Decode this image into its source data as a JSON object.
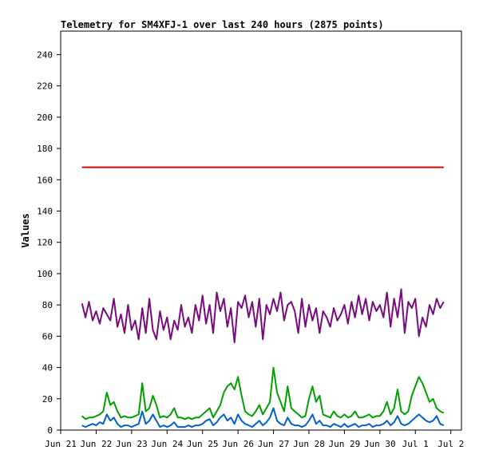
{
  "chart_data": {
    "type": "line",
    "title": "Telemetry for SM4XFJ-1 over last 240 hours (2875 points)",
    "xlabel": "",
    "ylabel": "Values",
    "ylim": [
      0,
      255
    ],
    "yticks": [
      0,
      20,
      40,
      60,
      80,
      100,
      120,
      140,
      160,
      180,
      200,
      220,
      240
    ],
    "x_tick_labels": [
      "Jun 21",
      "Jun 22",
      "Jun 23",
      "Jun 24",
      "Jun 25",
      "Jun 26",
      "Jun 27",
      "Jun 28",
      "Jun 29",
      "Jun 30",
      "Jul 1",
      "Jul 2"
    ],
    "xlim_days": [
      0,
      11.3
    ],
    "grid": false,
    "legend": "none",
    "series": [
      {
        "color": "#dd0000",
        "x_days": [
          0.6,
          10.8
        ],
        "values": [
          168,
          168
        ]
      },
      {
        "color": "#7a0a7f",
        "x_days": [
          0.6,
          0.7,
          0.8,
          0.9,
          1.0,
          1.1,
          1.2,
          1.3,
          1.4,
          1.5,
          1.6,
          1.7,
          1.8,
          1.9,
          2.0,
          2.1,
          2.2,
          2.3,
          2.4,
          2.5,
          2.6,
          2.7,
          2.8,
          2.9,
          3.0,
          3.1,
          3.2,
          3.3,
          3.4,
          3.5,
          3.6,
          3.7,
          3.8,
          3.9,
          4.0,
          4.1,
          4.2,
          4.3,
          4.4,
          4.5,
          4.6,
          4.7,
          4.8,
          4.9,
          5.0,
          5.1,
          5.2,
          5.3,
          5.4,
          5.5,
          5.6,
          5.7,
          5.8,
          5.9,
          6.0,
          6.1,
          6.2,
          6.3,
          6.4,
          6.5,
          6.6,
          6.7,
          6.8,
          6.9,
          7.0,
          7.1,
          7.2,
          7.3,
          7.4,
          7.5,
          7.6,
          7.7,
          7.8,
          7.9,
          8.0,
          8.1,
          8.2,
          8.3,
          8.4,
          8.5,
          8.6,
          8.7,
          8.8,
          8.9,
          9.0,
          9.1,
          9.2,
          9.3,
          9.4,
          9.5,
          9.6,
          9.7,
          9.8,
          9.9,
          10.0,
          10.1,
          10.2,
          10.3,
          10.4,
          10.5,
          10.6,
          10.7,
          10.8
        ],
        "values": [
          81,
          72,
          82,
          70,
          76,
          68,
          78,
          74,
          70,
          84,
          66,
          74,
          62,
          80,
          64,
          70,
          58,
          78,
          62,
          84,
          64,
          58,
          76,
          64,
          72,
          58,
          70,
          64,
          80,
          66,
          72,
          62,
          80,
          70,
          86,
          68,
          80,
          62,
          88,
          76,
          84,
          66,
          78,
          56,
          82,
          78,
          86,
          72,
          82,
          66,
          84,
          58,
          80,
          74,
          84,
          76,
          88,
          70,
          80,
          82,
          76,
          62,
          84,
          66,
          80,
          70,
          78,
          62,
          76,
          72,
          66,
          78,
          70,
          74,
          80,
          68,
          82,
          72,
          86,
          74,
          84,
          70,
          82,
          76,
          80,
          72,
          88,
          66,
          84,
          72,
          90,
          62,
          82,
          78,
          84,
          60,
          72,
          66,
          80,
          74,
          84,
          78,
          82
        ]
      },
      {
        "color": "#00a000",
        "x_days": [
          0.6,
          0.7,
          0.8,
          0.9,
          1.0,
          1.1,
          1.2,
          1.3,
          1.4,
          1.5,
          1.6,
          1.7,
          1.8,
          1.9,
          2.0,
          2.1,
          2.2,
          2.3,
          2.4,
          2.5,
          2.6,
          2.7,
          2.8,
          2.9,
          3.0,
          3.1,
          3.2,
          3.3,
          3.4,
          3.5,
          3.6,
          3.7,
          3.8,
          3.9,
          4.0,
          4.1,
          4.2,
          4.3,
          4.4,
          4.5,
          4.6,
          4.7,
          4.8,
          4.9,
          5.0,
          5.1,
          5.2,
          5.3,
          5.4,
          5.5,
          5.6,
          5.7,
          5.8,
          5.9,
          6.0,
          6.1,
          6.2,
          6.3,
          6.4,
          6.5,
          6.6,
          6.7,
          6.8,
          6.9,
          7.0,
          7.1,
          7.2,
          7.3,
          7.4,
          7.5,
          7.6,
          7.7,
          7.8,
          7.9,
          8.0,
          8.1,
          8.2,
          8.3,
          8.4,
          8.5,
          8.6,
          8.7,
          8.8,
          8.9,
          9.0,
          9.1,
          9.2,
          9.3,
          9.4,
          9.5,
          9.6,
          9.7,
          9.8,
          9.9,
          10.0,
          10.1,
          10.2,
          10.3,
          10.4,
          10.5,
          10.6,
          10.7,
          10.8
        ],
        "values": [
          9,
          7,
          8,
          8,
          9,
          10,
          12,
          24,
          16,
          18,
          12,
          8,
          9,
          8,
          8,
          9,
          10,
          30,
          12,
          14,
          22,
          16,
          8,
          9,
          8,
          10,
          14,
          8,
          8,
          7,
          8,
          7,
          8,
          8,
          10,
          12,
          14,
          8,
          12,
          16,
          24,
          28,
          30,
          26,
          34,
          22,
          12,
          10,
          9,
          12,
          16,
          10,
          14,
          18,
          40,
          24,
          18,
          12,
          28,
          14,
          12,
          10,
          8,
          9,
          20,
          28,
          18,
          22,
          10,
          9,
          8,
          12,
          9,
          8,
          10,
          8,
          9,
          12,
          8,
          8,
          9,
          10,
          8,
          9,
          9,
          12,
          18,
          10,
          14,
          26,
          12,
          10,
          12,
          22,
          28,
          34,
          30,
          24,
          18,
          20,
          14,
          12,
          11
        ]
      },
      {
        "color": "#0060d0",
        "x_days": [
          0.6,
          0.7,
          0.8,
          0.9,
          1.0,
          1.1,
          1.2,
          1.3,
          1.4,
          1.5,
          1.6,
          1.7,
          1.8,
          1.9,
          2.0,
          2.1,
          2.2,
          2.3,
          2.4,
          2.5,
          2.6,
          2.7,
          2.8,
          2.9,
          3.0,
          3.1,
          3.2,
          3.3,
          3.4,
          3.5,
          3.6,
          3.7,
          3.8,
          3.9,
          4.0,
          4.1,
          4.2,
          4.3,
          4.4,
          4.5,
          4.6,
          4.7,
          4.8,
          4.9,
          5.0,
          5.1,
          5.2,
          5.3,
          5.4,
          5.5,
          5.6,
          5.7,
          5.8,
          5.9,
          6.0,
          6.1,
          6.2,
          6.3,
          6.4,
          6.5,
          6.6,
          6.7,
          6.8,
          6.9,
          7.0,
          7.1,
          7.2,
          7.3,
          7.4,
          7.5,
          7.6,
          7.7,
          7.8,
          7.9,
          8.0,
          8.1,
          8.2,
          8.3,
          8.4,
          8.5,
          8.6,
          8.7,
          8.8,
          8.9,
          9.0,
          9.1,
          9.2,
          9.3,
          9.4,
          9.5,
          9.6,
          9.7,
          9.8,
          9.9,
          10.0,
          10.1,
          10.2,
          10.3,
          10.4,
          10.5,
          10.6,
          10.7,
          10.8
        ],
        "values": [
          3,
          2,
          3,
          4,
          3,
          5,
          4,
          10,
          6,
          8,
          4,
          2,
          3,
          3,
          2,
          3,
          4,
          12,
          4,
          6,
          10,
          6,
          2,
          3,
          2,
          3,
          5,
          2,
          2,
          2,
          3,
          2,
          3,
          3,
          4,
          6,
          7,
          3,
          5,
          8,
          10,
          6,
          8,
          4,
          10,
          6,
          4,
          3,
          2,
          4,
          6,
          3,
          5,
          8,
          14,
          6,
          4,
          3,
          8,
          4,
          3,
          3,
          2,
          3,
          6,
          10,
          4,
          6,
          3,
          3,
          2,
          4,
          3,
          2,
          4,
          2,
          3,
          4,
          2,
          3,
          3,
          4,
          2,
          3,
          3,
          4,
          6,
          3,
          5,
          9,
          4,
          3,
          4,
          6,
          8,
          10,
          8,
          6,
          5,
          6,
          9,
          4,
          3
        ]
      }
    ]
  }
}
